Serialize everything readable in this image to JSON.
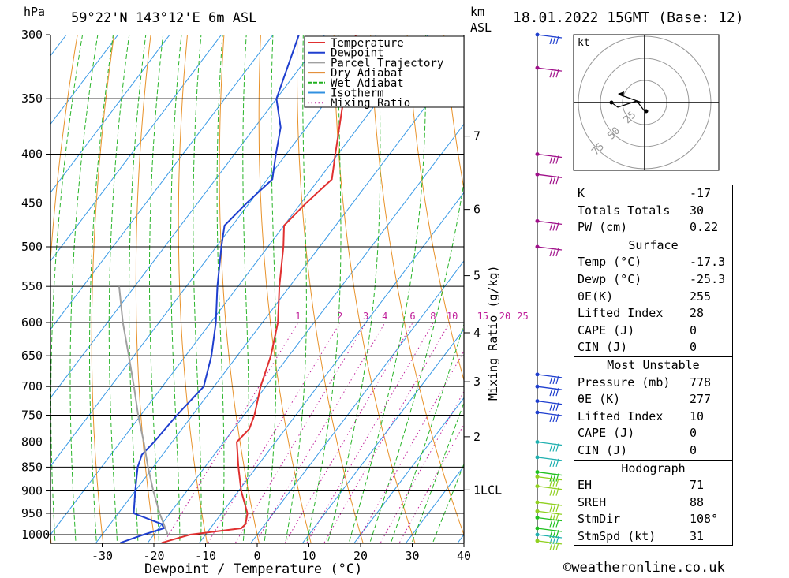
{
  "header": {
    "location": "59°22'N  143°12'E  6m  ASL",
    "date": "18.01.2022  15GMT  (Base: 12)",
    "hpa_label": "hPa",
    "km_label": "km",
    "asl_label": "ASL",
    "kt_label": "kt"
  },
  "chart_data": {
    "type": "line",
    "title": "Skew-T log-P sounding",
    "xlabel": "Dewpoint / Temperature (°C)",
    "ylabel": "hPa",
    "y2label": "Mixing Ratio (g/kg)",
    "xlim": [
      -40,
      40
    ],
    "ylim": [
      1000,
      300
    ],
    "x_ticks": [
      -30,
      -20,
      -10,
      0,
      10,
      20,
      30,
      40
    ],
    "pressure_levels": [
      300,
      350,
      400,
      450,
      500,
      550,
      600,
      650,
      700,
      750,
      800,
      850,
      900,
      950,
      1000
    ],
    "altitude_ticks": [
      {
        "km": "7",
        "p": 383
      },
      {
        "km": "6",
        "p": 457
      },
      {
        "km": "5",
        "p": 536
      },
      {
        "km": "4",
        "p": 615
      },
      {
        "km": "3",
        "p": 692
      },
      {
        "km": "2",
        "p": 790
      },
      {
        "km": "1LCL",
        "p": 898
      }
    ],
    "mixing_ratio_labels": [
      "1",
      "2",
      "3",
      "4",
      "6",
      "8",
      "10",
      "15",
      "20",
      "25"
    ],
    "legend": [
      {
        "name": "Temperature",
        "color": "#e03030",
        "style": "solid"
      },
      {
        "name": "Dewpoint",
        "color": "#1f3fcf",
        "style": "solid"
      },
      {
        "name": "Parcel Trajectory",
        "color": "#a0a0a0",
        "style": "solid"
      },
      {
        "name": "Dry Adiabat",
        "color": "#e08020",
        "style": "solid"
      },
      {
        "name": "Wet Adiabat",
        "color": "#20b020",
        "style": "dashed"
      },
      {
        "name": "Isotherm",
        "color": "#3090e0",
        "style": "solid"
      },
      {
        "name": "Mixing Ratio",
        "color": "#c0209a",
        "style": "dotted"
      }
    ],
    "series": [
      {
        "name": "Temperature",
        "color": "#e03030",
        "points": [
          [
            1020,
            -17.3
          ],
          [
            1000,
            -13
          ],
          [
            985,
            -4
          ],
          [
            975,
            -3.8
          ],
          [
            950,
            -5
          ],
          [
            900,
            -9.5
          ],
          [
            850,
            -13.5
          ],
          [
            800,
            -17.5
          ],
          [
            775,
            -17
          ],
          [
            750,
            -18
          ],
          [
            700,
            -21
          ],
          [
            650,
            -23.5
          ],
          [
            600,
            -27
          ],
          [
            550,
            -32
          ],
          [
            500,
            -37
          ],
          [
            475,
            -40
          ],
          [
            450,
            -39
          ],
          [
            425,
            -37.5
          ],
          [
            400,
            -40.5
          ],
          [
            350,
            -47
          ],
          [
            300,
            -54
          ]
        ]
      },
      {
        "name": "Dewpoint",
        "color": "#1f3fcf",
        "points": [
          [
            1020,
            -25.3
          ],
          [
            1000,
            -22
          ],
          [
            985,
            -19
          ],
          [
            975,
            -20
          ],
          [
            950,
            -27
          ],
          [
            900,
            -30
          ],
          [
            850,
            -33
          ],
          [
            825,
            -34
          ],
          [
            800,
            -33.5
          ],
          [
            750,
            -33
          ],
          [
            700,
            -32
          ],
          [
            650,
            -35
          ],
          [
            600,
            -39
          ],
          [
            550,
            -44
          ],
          [
            500,
            -49
          ],
          [
            475,
            -51.5
          ],
          [
            450,
            -50.5
          ],
          [
            425,
            -49
          ],
          [
            400,
            -52
          ],
          [
            375,
            -55
          ],
          [
            350,
            -60
          ],
          [
            300,
            -65
          ]
        ]
      },
      {
        "name": "Parcel Trajectory",
        "color": "#a0a0a0",
        "points": [
          [
            1000,
            -17.3
          ],
          [
            950,
            -22
          ],
          [
            900,
            -26.5
          ],
          [
            850,
            -31
          ],
          [
            800,
            -35.5
          ],
          [
            750,
            -40.5
          ],
          [
            700,
            -45.5
          ],
          [
            650,
            -51
          ],
          [
            600,
            -57
          ],
          [
            550,
            -63
          ]
        ]
      }
    ],
    "wind_markers": [
      {
        "p": 300,
        "color": "#1f3fcf"
      },
      {
        "p": 325,
        "color": "#a0108a"
      },
      {
        "p": 400,
        "color": "#a0108a"
      },
      {
        "p": 420,
        "color": "#a0108a"
      },
      {
        "p": 470,
        "color": "#a0108a"
      },
      {
        "p": 500,
        "color": "#a0108a"
      },
      {
        "p": 680,
        "color": "#1f3fcf"
      },
      {
        "p": 700,
        "color": "#1f3fcf"
      },
      {
        "p": 725,
        "color": "#1f3fcf"
      },
      {
        "p": 745,
        "color": "#1f3fcf"
      },
      {
        "p": 800,
        "color": "#20b0b0"
      },
      {
        "p": 830,
        "color": "#20b0b0"
      },
      {
        "p": 860,
        "color": "#20c020"
      },
      {
        "p": 870,
        "color": "#90d020"
      },
      {
        "p": 890,
        "color": "#90d020"
      },
      {
        "p": 925,
        "color": "#90d020"
      },
      {
        "p": 945,
        "color": "#90d020"
      },
      {
        "p": 960,
        "color": "#20c020"
      },
      {
        "p": 985,
        "color": "#20c020"
      },
      {
        "p": 1000,
        "color": "#20b0b0"
      },
      {
        "p": 1015,
        "color": "#90d020"
      }
    ],
    "hodograph": {
      "ring_labels": [
        "25",
        "50",
        "75"
      ],
      "storm_dir_deg": 108,
      "storm_speed_kt": 31
    }
  },
  "indices": {
    "rows": [
      {
        "k": "K",
        "v": "-17"
      },
      {
        "k": "Totals Totals",
        "v": "30"
      },
      {
        "k": "PW (cm)",
        "v": "0.22"
      }
    ]
  },
  "surface": {
    "title": "Surface",
    "rows": [
      {
        "k": "Temp (°C)",
        "v": "-17.3"
      },
      {
        "k": "Dewp (°C)",
        "v": "-25.3"
      },
      {
        "k": "θE(K)",
        "v": "255"
      },
      {
        "k": "Lifted Index",
        "v": "28"
      },
      {
        "k": "CAPE (J)",
        "v": "0"
      },
      {
        "k": "CIN (J)",
        "v": "0"
      }
    ]
  },
  "most_unstable": {
    "title": "Most Unstable",
    "rows": [
      {
        "k": "Pressure (mb)",
        "v": "778"
      },
      {
        "k": "θE (K)",
        "v": "277"
      },
      {
        "k": "Lifted Index",
        "v": "10"
      },
      {
        "k": "CAPE (J)",
        "v": "0"
      },
      {
        "k": "CIN (J)",
        "v": "0"
      }
    ]
  },
  "hodograph_tbl": {
    "title": "Hodograph",
    "rows": [
      {
        "k": "EH",
        "v": "71"
      },
      {
        "k": "SREH",
        "v": "88"
      },
      {
        "k": "StmDir",
        "v": "108°"
      },
      {
        "k": "StmSpd (kt)",
        "v": "31"
      }
    ]
  },
  "credit": "©weatheronline.co.uk"
}
